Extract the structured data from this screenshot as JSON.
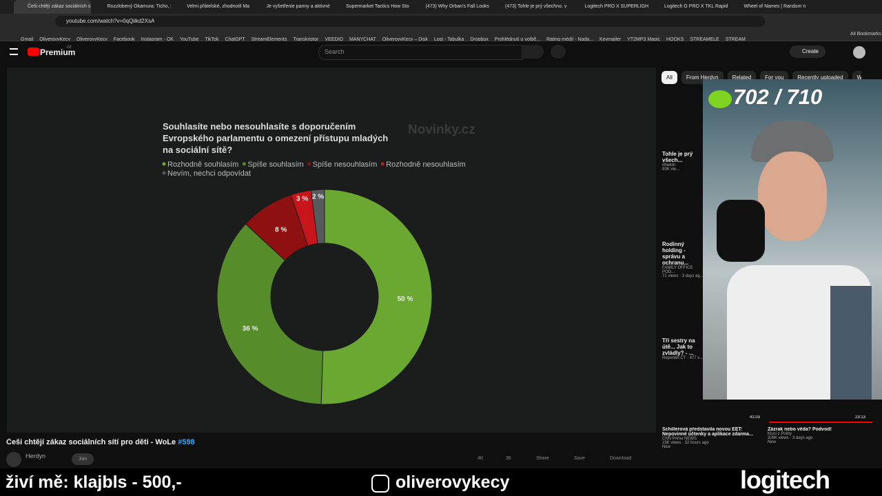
{
  "browser": {
    "tabs": [
      "Češi chtějí zákaz sociálních sít",
      "Rozzlobený Okamura: Ticho, pl",
      "Velmi přátelské, zhodnotil Ma",
      "Je vyšetřenie panny a aktivné",
      "Supermarket Tactics How Sto",
      "(473) Why Orban's Fall Looks",
      "(473) Tohle je prý všechno. v",
      "Logitech PRO X SUPERLIGHT",
      "Logitech G PRO X TKL Rapid",
      "Wheel of Names | Random n"
    ],
    "url": "youtube.com/watch?v=0qQiikd2XsA",
    "bookmarks": [
      "Gmail",
      "OliverovyKecy",
      "OliverovyKecy",
      "Facebook",
      "Instagram - OK",
      "YouTube",
      "TikTok",
      "ChatGPT",
      "StreamElements",
      "Transkriptor",
      "VEEDIO",
      "MANYCHAT",
      "OliverovyKecy – Disk",
      "Logi - Tabulka",
      "Dropbox",
      "Prohlédnutí o volbě...",
      "Rating médií - Nada...",
      "Keymailer",
      "YT2MP3 Magic",
      "HOOKS",
      "STREAMELE",
      "STREAM"
    ],
    "all_bookmarks": "All Bookmarks"
  },
  "youtube": {
    "logo": "Premium",
    "region": "CZ",
    "search": "Search",
    "create": "Create",
    "chips": [
      "All",
      "From Herdyn",
      "Related",
      "For you",
      "Recently uploaded",
      "W"
    ],
    "video": {
      "chart": {
        "title": "Souhlasíte nebo nesouhlasíte s doporučením Evropského parlamentu o omezení přístupu mladých na sociální sítě?",
        "source": "Novinky.cz",
        "slices": [
          {
            "name": "Rozhodně souhlasím",
            "color": "#6aa832",
            "value": 50,
            "label": "50 %"
          },
          {
            "name": "Spíše souhlasím",
            "color": "#578c2a",
            "value": 36,
            "label": "36 %"
          },
          {
            "name": "Spíše nesouhlasím",
            "color": "#8e1010",
            "value": 8,
            "label": "8 %"
          },
          {
            "name": "Rozhodně nesouhlasím",
            "color": "#c8151b",
            "value": 3,
            "label": "3 %"
          },
          {
            "name": "Nevím, nechci odpovídat",
            "color": "#58595b",
            "value": 2,
            "label": "2 %"
          }
        ]
      },
      "title": "Češi chtějí zákaz sociálních sítí pro děti - WoLe",
      "episode": "#598",
      "channel": "Herdyn",
      "join": "Join",
      "likes": "4K",
      "comments": "36",
      "share": "Share",
      "save": "Save",
      "download": "Download"
    },
    "sidebar": [
      {
        "title": "Tohle je prý všech...",
        "channel": "rlhwldn",
        "meta": "93K vie..."
      },
      {
        "title": "Rodinný holding - správu a ochranu...",
        "channel": "FAMILY OFFICE POD...",
        "meta": "71 views · 3 days ag..."
      },
      {
        "title": "Tři sestry na útě... Jak to zvládly? - ...",
        "channel": "Reportéři ČT · 477 v..."
      }
    ],
    "bottom": [
      {
        "duration": "41:03",
        "title": "Schillerová představila novou EET: Nepovinné účtenky a aplikace zdarma...",
        "channel": "CNN Prima NEWS",
        "meta": "15K views · 32 hours ago",
        "badge": "New"
      },
      {
        "duration": "23:13",
        "title": "Zázrak nebo věda? Podvod!",
        "channel": "Kluci z Prahy",
        "meta": "326K views · 3 days ago",
        "badge": "New"
      }
    ]
  },
  "overlay": {
    "counter": "702 / 710",
    "support": "živí mě: klajbls - 500,-",
    "handle": "oliverovykecy",
    "brand": "logitech"
  }
}
